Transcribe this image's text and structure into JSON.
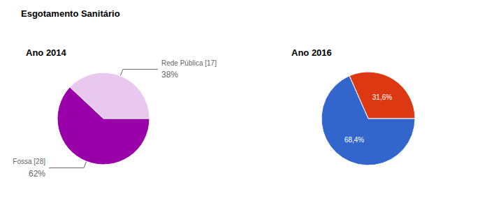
{
  "title": "Esgotamento Sanitário",
  "chart_data": [
    {
      "type": "pie",
      "title": "Ano 2014",
      "categories": [
        "Rede Pública [17]",
        "Fossa [28]"
      ],
      "values": [
        38,
        62
      ],
      "value_labels": [
        "38%",
        "62%"
      ],
      "colors": [
        "#e9c8ef",
        "#9900aa"
      ],
      "data_labels": true
    },
    {
      "type": "pie",
      "title": "Ano 2016",
      "values": [
        31.6,
        68.4
      ],
      "value_labels": [
        "31,6%",
        "68,4%"
      ],
      "colors": [
        "#dc3912",
        "#3366cc"
      ],
      "data_labels": true
    }
  ]
}
